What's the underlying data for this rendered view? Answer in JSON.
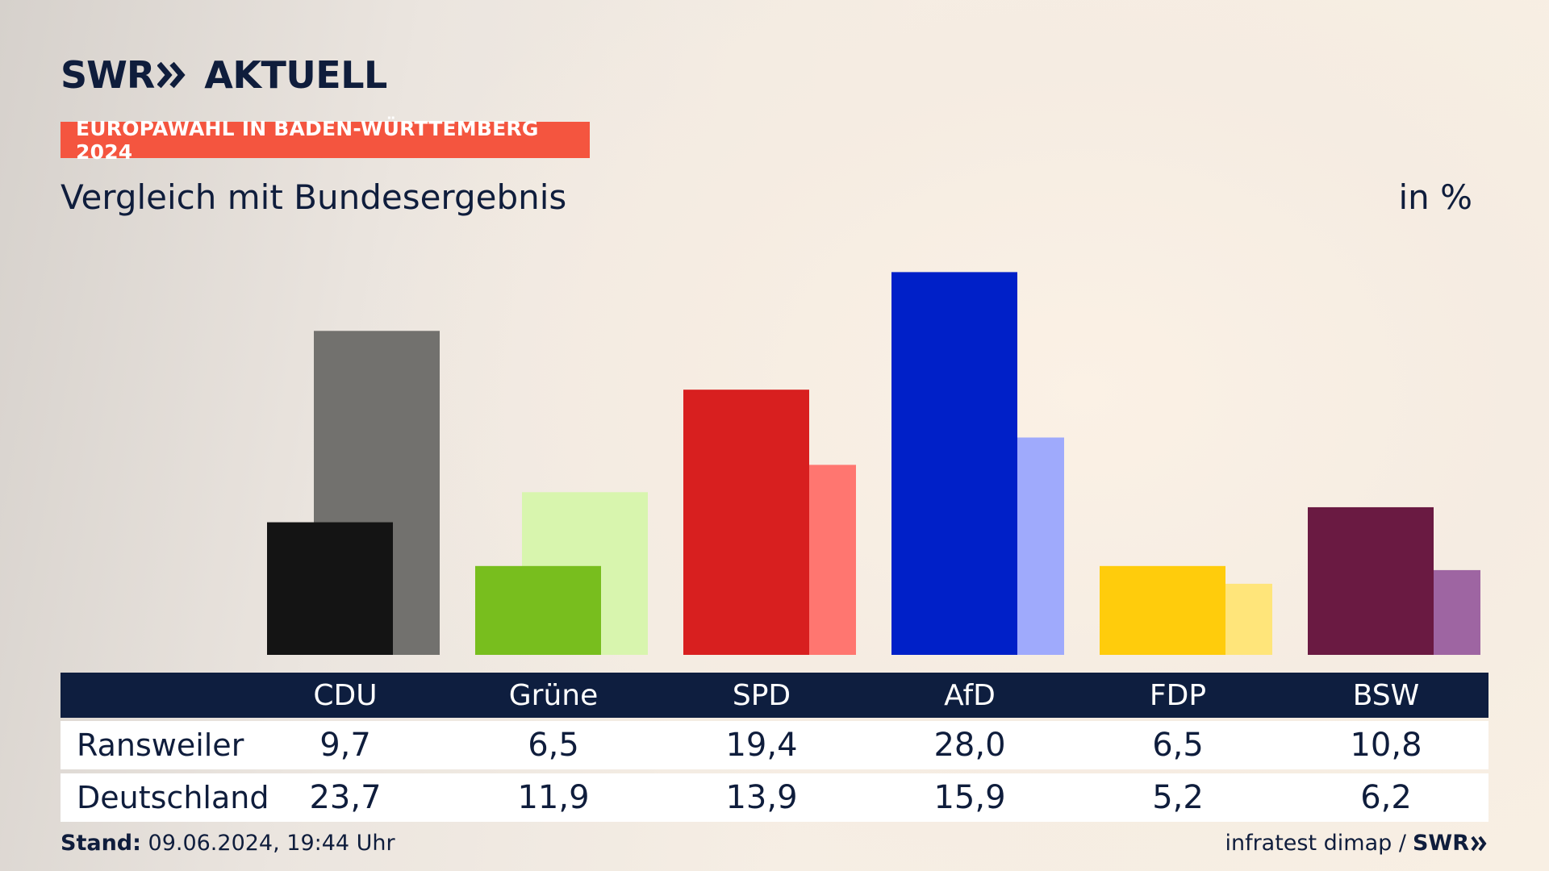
{
  "brand": {
    "swr": "SWR",
    "aktuell": "AKTUELL"
  },
  "kicker": "EUROPAWAHL IN BADEN-WÜRTTEMBERG 2024",
  "subtitle": "Vergleich mit Bundesergebnis",
  "unit": "in %",
  "colors": {
    "kicker_bg": "#f4553f",
    "table_header": "#0e1e3f",
    "text": "#0f1d3c"
  },
  "chart_data": {
    "type": "bar",
    "categories": [
      "CDU",
      "Grüne",
      "SPD",
      "AfD",
      "FDP",
      "BSW"
    ],
    "series": [
      {
        "name": "Ransweiler",
        "values": [
          9.7,
          6.5,
          19.4,
          28.0,
          6.5,
          10.8
        ]
      },
      {
        "name": "Deutschland",
        "values": [
          23.7,
          11.9,
          13.9,
          15.9,
          5.2,
          6.2
        ]
      }
    ],
    "bar_colors": {
      "Ransweiler": [
        "#141414",
        "#78be1e",
        "#d81f1f",
        "#0020c8",
        "#ffcc0c",
        "#6a1a42"
      ],
      "Deutschland": [
        "#72716e",
        "#d8f5ae",
        "#ff7670",
        "#9faafc",
        "#ffe57a",
        "#9e65a2"
      ]
    },
    "grid": false,
    "legend": "table-below"
  },
  "table": {
    "headers": [
      "CDU",
      "Grüne",
      "SPD",
      "AfD",
      "FDP",
      "BSW"
    ],
    "rows": [
      {
        "label": "Ransweiler",
        "values": [
          "9,7",
          "6,5",
          "19,4",
          "28,0",
          "6,5",
          "10,8"
        ]
      },
      {
        "label": "Deutschland",
        "values": [
          "23,7",
          "11,9",
          "13,9",
          "15,9",
          "5,2",
          "6,2"
        ]
      }
    ]
  },
  "footer": {
    "stand_label": "Stand:",
    "stand_value": "09.06.2024, 19:44 Uhr",
    "source": "infratest dimap /",
    "source_brand": "SWR"
  }
}
